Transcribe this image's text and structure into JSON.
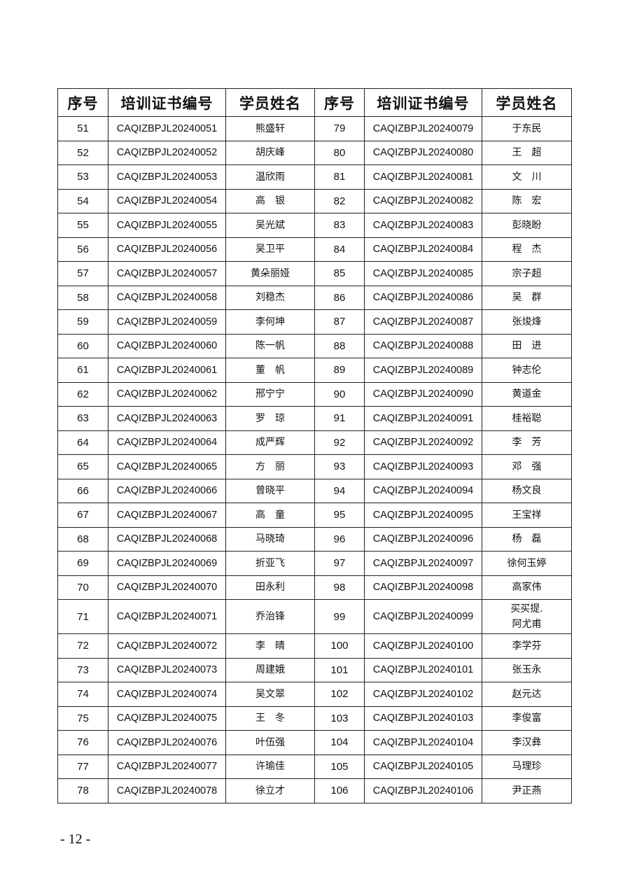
{
  "table": {
    "headers": [
      "序号",
      "培训证书编号",
      "学员姓名",
      "序号",
      "培训证书编号",
      "学员姓名"
    ],
    "rows": [
      [
        [
          "51",
          "CAQIZBPJL20240051",
          "熊盛轩"
        ],
        [
          "79",
          "CAQIZBPJL20240079",
          "于东民"
        ]
      ],
      [
        [
          "52",
          "CAQIZBPJL20240052",
          "胡庆峰"
        ],
        [
          "80",
          "CAQIZBPJL20240080",
          "王　超"
        ]
      ],
      [
        [
          "53",
          "CAQIZBPJL20240053",
          "温欣雨"
        ],
        [
          "81",
          "CAQIZBPJL20240081",
          "文　川"
        ]
      ],
      [
        [
          "54",
          "CAQIZBPJL20240054",
          "高　银"
        ],
        [
          "82",
          "CAQIZBPJL20240082",
          "陈　宏"
        ]
      ],
      [
        [
          "55",
          "CAQIZBPJL20240055",
          "吴光斌"
        ],
        [
          "83",
          "CAQIZBPJL20240083",
          "彭晓盼"
        ]
      ],
      [
        [
          "56",
          "CAQIZBPJL20240056",
          "吴卫平"
        ],
        [
          "84",
          "CAQIZBPJL20240084",
          "程　杰"
        ]
      ],
      [
        [
          "57",
          "CAQIZBPJL20240057",
          "黄朵丽娅"
        ],
        [
          "85",
          "CAQIZBPJL20240085",
          "宗子超"
        ]
      ],
      [
        [
          "58",
          "CAQIZBPJL20240058",
          "刘稳杰"
        ],
        [
          "86",
          "CAQIZBPJL20240086",
          "吴　群"
        ]
      ],
      [
        [
          "59",
          "CAQIZBPJL20240059",
          "李何坤"
        ],
        [
          "87",
          "CAQIZBPJL20240087",
          "张焌烽"
        ]
      ],
      [
        [
          "60",
          "CAQIZBPJL20240060",
          "陈一帆"
        ],
        [
          "88",
          "CAQIZBPJL20240088",
          "田　进"
        ]
      ],
      [
        [
          "61",
          "CAQIZBPJL20240061",
          "董　帆"
        ],
        [
          "89",
          "CAQIZBPJL20240089",
          "钟志伦"
        ]
      ],
      [
        [
          "62",
          "CAQIZBPJL20240062",
          "邢宁宁"
        ],
        [
          "90",
          "CAQIZBPJL20240090",
          "黄道金"
        ]
      ],
      [
        [
          "63",
          "CAQIZBPJL20240063",
          "罗　琼"
        ],
        [
          "91",
          "CAQIZBPJL20240091",
          "桂裕聪"
        ]
      ],
      [
        [
          "64",
          "CAQIZBPJL20240064",
          "成严辉"
        ],
        [
          "92",
          "CAQIZBPJL20240092",
          "李　芳"
        ]
      ],
      [
        [
          "65",
          "CAQIZBPJL20240065",
          "方　丽"
        ],
        [
          "93",
          "CAQIZBPJL20240093",
          "邓　强"
        ]
      ],
      [
        [
          "66",
          "CAQIZBPJL20240066",
          "曾晓平"
        ],
        [
          "94",
          "CAQIZBPJL20240094",
          "杨文良"
        ]
      ],
      [
        [
          "67",
          "CAQIZBPJL20240067",
          "高　童"
        ],
        [
          "95",
          "CAQIZBPJL20240095",
          "王宝祥"
        ]
      ],
      [
        [
          "68",
          "CAQIZBPJL20240068",
          "马晓琦"
        ],
        [
          "96",
          "CAQIZBPJL20240096",
          "杨　磊"
        ]
      ],
      [
        [
          "69",
          "CAQIZBPJL20240069",
          "折亚飞"
        ],
        [
          "97",
          "CAQIZBPJL20240097",
          "徐何玉婷"
        ]
      ],
      [
        [
          "70",
          "CAQIZBPJL20240070",
          "田永利"
        ],
        [
          "98",
          "CAQIZBPJL20240098",
          "高家伟"
        ]
      ],
      [
        [
          "71",
          "CAQIZBPJL20240071",
          "乔治锋"
        ],
        [
          "99",
          "CAQIZBPJL20240099",
          "买买提.\n阿尤甫"
        ]
      ],
      [
        [
          "72",
          "CAQIZBPJL20240072",
          "李　晴"
        ],
        [
          "100",
          "CAQIZBPJL20240100",
          "李学芬"
        ]
      ],
      [
        [
          "73",
          "CAQIZBPJL20240073",
          "周建娥"
        ],
        [
          "101",
          "CAQIZBPJL20240101",
          "张玉永"
        ]
      ],
      [
        [
          "74",
          "CAQIZBPJL20240074",
          "吴文翠"
        ],
        [
          "102",
          "CAQIZBPJL20240102",
          "赵元达"
        ]
      ],
      [
        [
          "75",
          "CAQIZBPJL20240075",
          "王　冬"
        ],
        [
          "103",
          "CAQIZBPJL20240103",
          "李俊富"
        ]
      ],
      [
        [
          "76",
          "CAQIZBPJL20240076",
          "叶伍强"
        ],
        [
          "104",
          "CAQIZBPJL20240104",
          "李汉彝"
        ]
      ],
      [
        [
          "77",
          "CAQIZBPJL20240077",
          "许瑜佳"
        ],
        [
          "105",
          "CAQIZBPJL20240105",
          "马理珍"
        ]
      ],
      [
        [
          "78",
          "CAQIZBPJL20240078",
          "徐立才"
        ],
        [
          "106",
          "CAQIZBPJL20240106",
          "尹正燕"
        ]
      ]
    ]
  },
  "footer": {
    "page_number": "- 12 -"
  }
}
